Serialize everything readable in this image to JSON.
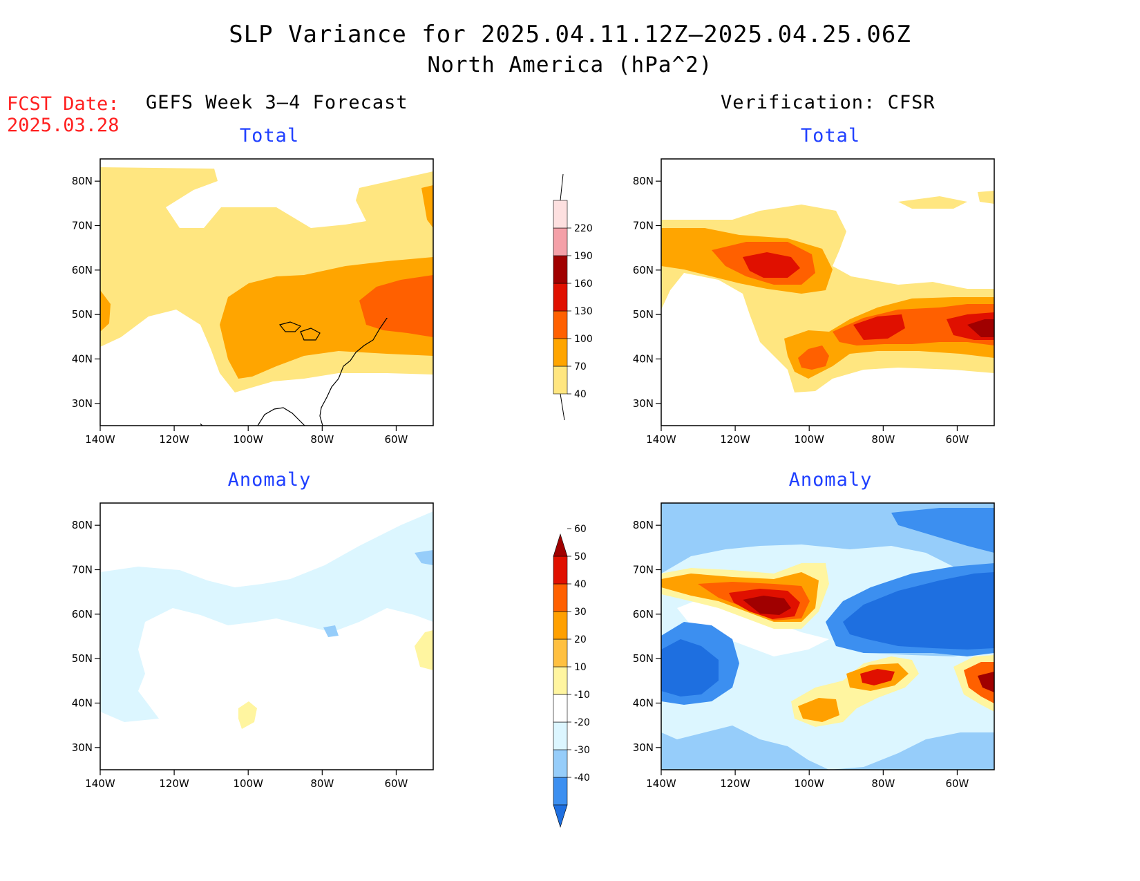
{
  "header": {
    "title": "SLP Variance for 2025.04.11.12Z–2025.04.25.06Z",
    "subtitle": "North America (hPa^2)",
    "fcst_label": "FCST Date:",
    "fcst_date": "2025.03.28"
  },
  "columns": {
    "left": "GEFS Week 3–4 Forecast",
    "right": "Verification: CFSR"
  },
  "panels": [
    {
      "id": "forecast-total",
      "title": "Total"
    },
    {
      "id": "verification-total",
      "title": "Total"
    },
    {
      "id": "forecast-anomaly",
      "title": "Anomaly"
    },
    {
      "id": "verification-anomaly",
      "title": "Anomaly"
    }
  ],
  "axes": {
    "lon_labels": [
      "140W",
      "120W",
      "100W",
      "80W",
      "60W"
    ],
    "lat_labels": [
      "80N",
      "70N",
      "60N",
      "50N",
      "40N",
      "30N"
    ],
    "lon_range": [
      -140,
      -50
    ],
    "lat_range": [
      25,
      85
    ]
  },
  "legends": {
    "total": {
      "labels": [
        "40",
        "70",
        "100",
        "130",
        "160",
        "190",
        "220"
      ],
      "colors": [
        "#ffe680",
        "#ffa500",
        "#ff6000",
        "#e01000",
        "#a00000",
        "#f4a0a8",
        "#fde0e0"
      ]
    },
    "anomaly": {
      "labels": [
        "-40",
        "-30",
        "-20",
        "-10",
        "10",
        "20",
        "30",
        "40",
        "50",
        "60"
      ],
      "colors": [
        "#1e6fe0",
        "#3c8ff0",
        "#96cdfa",
        "#dcf6ff",
        "#ffffff",
        "#fff5a0",
        "#ffc040",
        "#ffa000",
        "#ff6000",
        "#e01000",
        "#a00000"
      ]
    }
  }
}
